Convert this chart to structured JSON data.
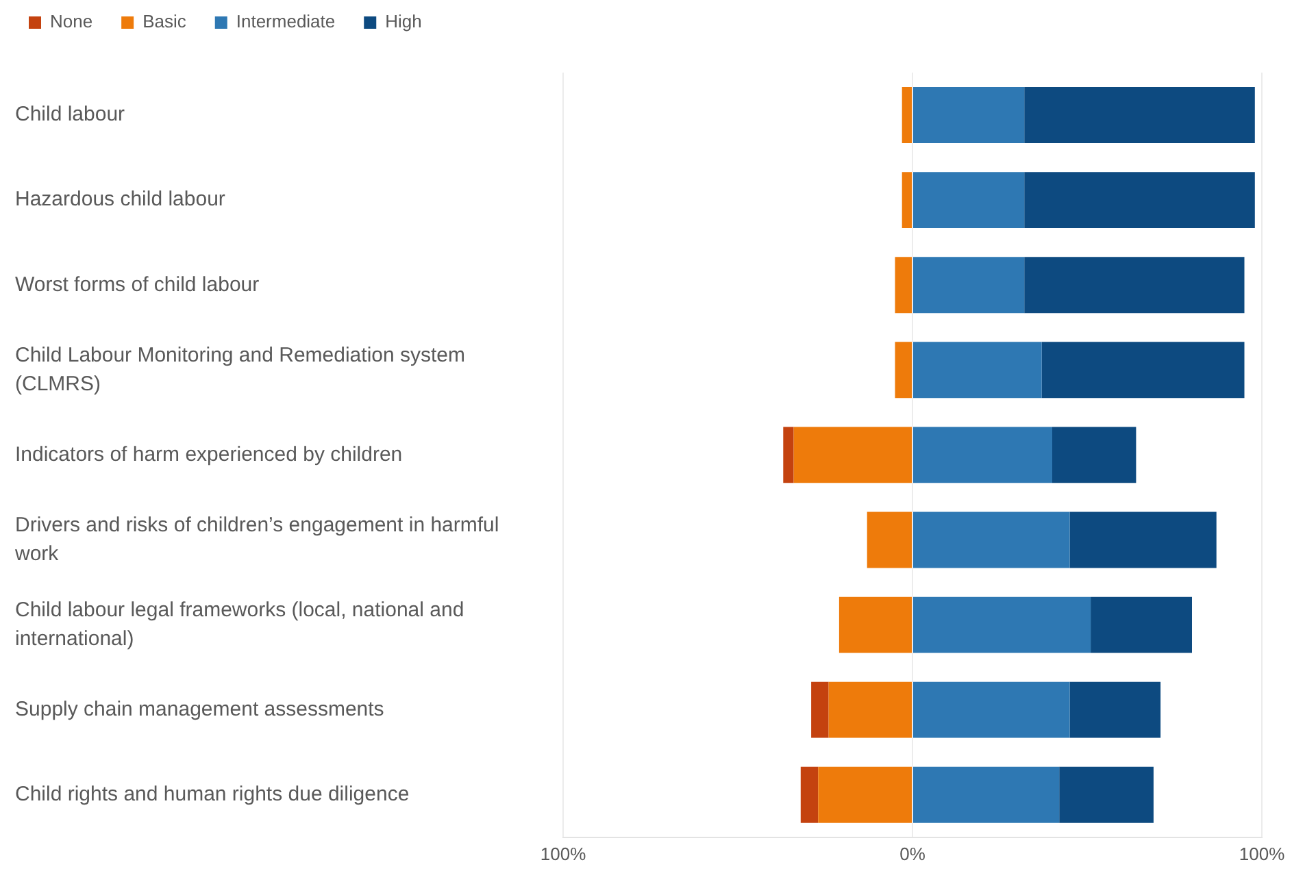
{
  "chart_data": {
    "type": "bar",
    "orientation": "horizontal",
    "stacked": true,
    "categories": [
      "Child labour",
      "Hazardous child labour",
      "Worst forms of child labour",
      "Child Labour Monitoring and Remediation system (CLMRS)",
      "Indicators of harm experienced by children",
      "Drivers and risks of children’s engagement in harmful work",
      "Child labour legal frameworks (local, national and international)",
      "Supply chain management assessments",
      "Child rights and human rights due diligence"
    ],
    "series": [
      {
        "name": "None",
        "color": "#c4420f",
        "values": [
          0,
          0,
          0,
          0,
          -3,
          0,
          0,
          -5,
          -5
        ]
      },
      {
        "name": "Basic",
        "color": "#ee7b0b",
        "values": [
          -3,
          -3,
          -5,
          -5,
          -34,
          -13,
          -21,
          -24,
          -27
        ]
      },
      {
        "name": "Intermediate",
        "color": "#2e78b3",
        "values": [
          32,
          32,
          32,
          37,
          40,
          45,
          51,
          45,
          42
        ]
      },
      {
        "name": "High",
        "color": "#0d4a80",
        "values": [
          66,
          66,
          63,
          58,
          24,
          42,
          29,
          26,
          27
        ]
      }
    ],
    "xlim": [
      -100,
      100
    ],
    "xticks": [
      {
        "value": -100,
        "label": "100%"
      },
      {
        "value": 0,
        "label": "0%"
      },
      {
        "value": 100,
        "label": "100%"
      }
    ],
    "grid": "x",
    "legend": "top left"
  }
}
